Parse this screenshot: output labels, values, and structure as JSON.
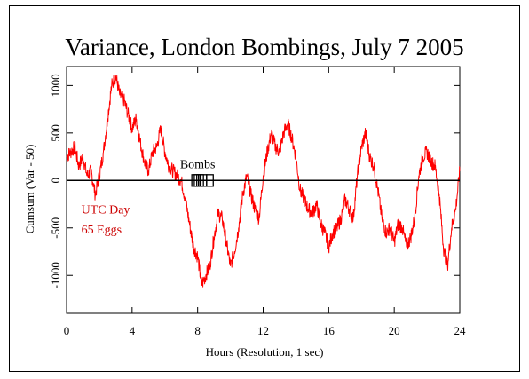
{
  "chart_data": {
    "type": "line",
    "title": "Variance, London Bombings, July 7 2005",
    "xlabel": "Hours (Resolution, 1 sec)",
    "ylabel": "Cumsum (Var - 50)",
    "xlim": [
      0,
      24
    ],
    "ylim": [
      -1400,
      1200
    ],
    "xticks": [
      0,
      4,
      8,
      12,
      16,
      20,
      24
    ],
    "yticks": [
      -1000,
      -500,
      0,
      500,
      1000
    ],
    "grid": false,
    "colors": {
      "series": "#ff0000",
      "axes": "#000000",
      "annotation": "#cc0000"
    },
    "annotations": [
      {
        "text": "Bombs",
        "x": 8.0,
        "y": 130
      },
      {
        "text": "UTC Day",
        "x": 0.9,
        "y": -350
      },
      {
        "text": "65 Eggs",
        "x": 0.9,
        "y": -560
      }
    ],
    "markers": {
      "label": "Bombs",
      "times": [
        7.85,
        8.0,
        8.15,
        8.35,
        8.75
      ],
      "y": 0
    },
    "series": [
      {
        "values_description_hidden": "",
        "x": [
          0,
          0.25,
          0.5,
          0.75,
          1.0,
          1.25,
          1.5,
          1.75,
          2.0,
          2.25,
          2.5,
          2.75,
          3.0,
          3.25,
          3.5,
          3.75,
          4.0,
          4.25,
          4.5,
          4.75,
          5.0,
          5.25,
          5.5,
          5.75,
          6.0,
          6.25,
          6.5,
          6.75,
          7.0,
          7.25,
          7.5,
          7.75,
          8.0,
          8.25,
          8.5,
          8.75,
          9.0,
          9.25,
          9.5,
          9.75,
          10.0,
          10.25,
          10.5,
          10.75,
          11.0,
          11.25,
          11.5,
          11.75,
          12.0,
          12.25,
          12.5,
          12.75,
          13.0,
          13.25,
          13.5,
          13.75,
          14.0,
          14.25,
          14.5,
          14.75,
          15.0,
          15.25,
          15.5,
          15.75,
          16.0,
          16.25,
          16.5,
          16.75,
          17.0,
          17.25,
          17.5,
          17.75,
          18.0,
          18.25,
          18.5,
          18.75,
          19.0,
          19.25,
          19.5,
          19.75,
          20.0,
          20.25,
          20.5,
          20.75,
          21.0,
          21.25,
          21.5,
          21.75,
          22.0,
          22.25,
          22.5,
          22.75,
          23.0,
          23.25,
          23.5,
          23.75,
          24.0
        ],
        "values": [
          250,
          300,
          350,
          150,
          250,
          50,
          100,
          -150,
          50,
          300,
          650,
          1000,
          1100,
          900,
          850,
          700,
          550,
          650,
          400,
          200,
          100,
          300,
          350,
          550,
          300,
          150,
          100,
          50,
          0,
          -200,
          -450,
          -700,
          -800,
          -1100,
          -1000,
          -900,
          -600,
          -350,
          -400,
          -650,
          -900,
          -750,
          -500,
          -150,
          50,
          -150,
          -300,
          -400,
          50,
          300,
          500,
          350,
          300,
          500,
          600,
          450,
          250,
          -100,
          -200,
          -300,
          -350,
          -250,
          -450,
          -550,
          -700,
          -550,
          -500,
          -400,
          -200,
          -300,
          -400,
          50,
          350,
          500,
          250,
          150,
          -100,
          -400,
          -550,
          -500,
          -650,
          -450,
          -500,
          -700,
          -600,
          -400,
          50,
          250,
          300,
          200,
          150,
          -150,
          -700,
          -900,
          -500,
          -300,
          100
        ]
      }
    ]
  }
}
